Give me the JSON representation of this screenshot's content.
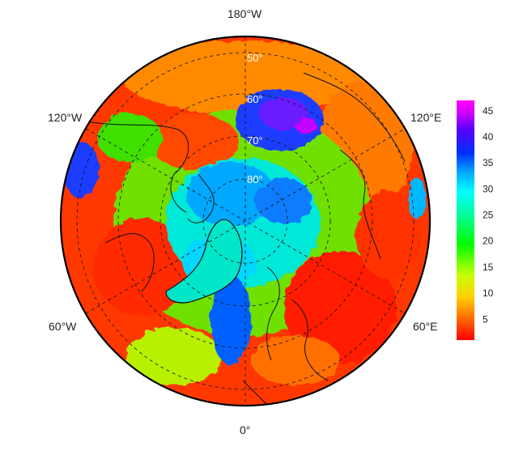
{
  "map": {
    "projection": "north polar stereographic",
    "longitude_labels": {
      "top": "180°W",
      "upper_left": "120°W",
      "upper_right": "120°E",
      "lower_left": "60°W",
      "lower_right": "60°E",
      "bottom": "0°"
    },
    "latitude_labels": [
      "50°",
      "60°",
      "70°",
      "80°"
    ]
  },
  "colorbar": {
    "ticks": [
      5,
      10,
      15,
      20,
      25,
      30,
      35,
      40,
      45
    ],
    "min": 1,
    "max": 47,
    "colors": [
      "#ff0000",
      "#ff6a00",
      "#ffd000",
      "#c8ff00",
      "#00ff00",
      "#00ff9a",
      "#00ffff",
      "#00a8ff",
      "#0030ff",
      "#5a00ff",
      "#d200ff",
      "#ff00ff"
    ]
  }
}
